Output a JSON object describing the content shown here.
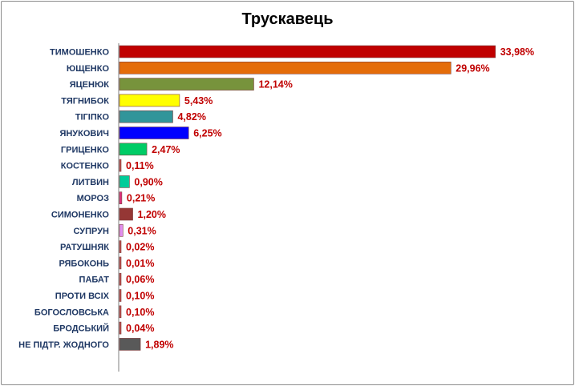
{
  "chart_data": {
    "type": "bar",
    "orientation": "horizontal",
    "title": "Трускавець",
    "categories": [
      "ТИМОШЕНКО",
      "ЮЩЕНКО",
      "ЯЦЕНЮК",
      "ТЯГНИБОК",
      "ТІГІПКО",
      "ЯНУКОВИЧ",
      "ГРИЦЕНКО",
      "КОСТЕНКО",
      "ЛИТВИН",
      "МОРОЗ",
      "СИМОНЕНКО",
      "СУПРУН",
      "РАТУШНЯК",
      "РЯБОКОНЬ",
      "ПАБАТ",
      "ПРОТИ ВСІХ",
      "БОГОСЛОВСЬКА",
      "БРОДСЬКИЙ",
      "НЕ ПІДТР. ЖОДНОГО"
    ],
    "values": [
      33.98,
      29.96,
      12.14,
      5.43,
      4.82,
      6.25,
      2.47,
      0.11,
      0.9,
      0.21,
      1.2,
      0.31,
      0.02,
      0.01,
      0.06,
      0.1,
      0.1,
      0.04,
      1.89
    ],
    "value_labels": [
      "33,98%",
      "29,96%",
      "12,14%",
      "5,43%",
      "4,82%",
      "6,25%",
      "2,47%",
      "0,11%",
      "0,90%",
      "0,21%",
      "1,20%",
      "0,31%",
      "0,02%",
      "0,01%",
      "0,06%",
      "0,10%",
      "0,10%",
      "0,04%",
      "1,89%"
    ],
    "colors": [
      "#c00000",
      "#e46c0a",
      "#77933c",
      "#ffff00",
      "#31959a",
      "#0000ff",
      "#00cc66",
      "#c0504d",
      "#00cc99",
      "#e0307f",
      "#953735",
      "#e28ff0",
      "#c0504d",
      "#c0504d",
      "#c0504d",
      "#c0504d",
      "#c0504d",
      "#c0504d",
      "#595959"
    ],
    "xlim": [
      0,
      34
    ],
    "grid": false,
    "legend": "none"
  }
}
